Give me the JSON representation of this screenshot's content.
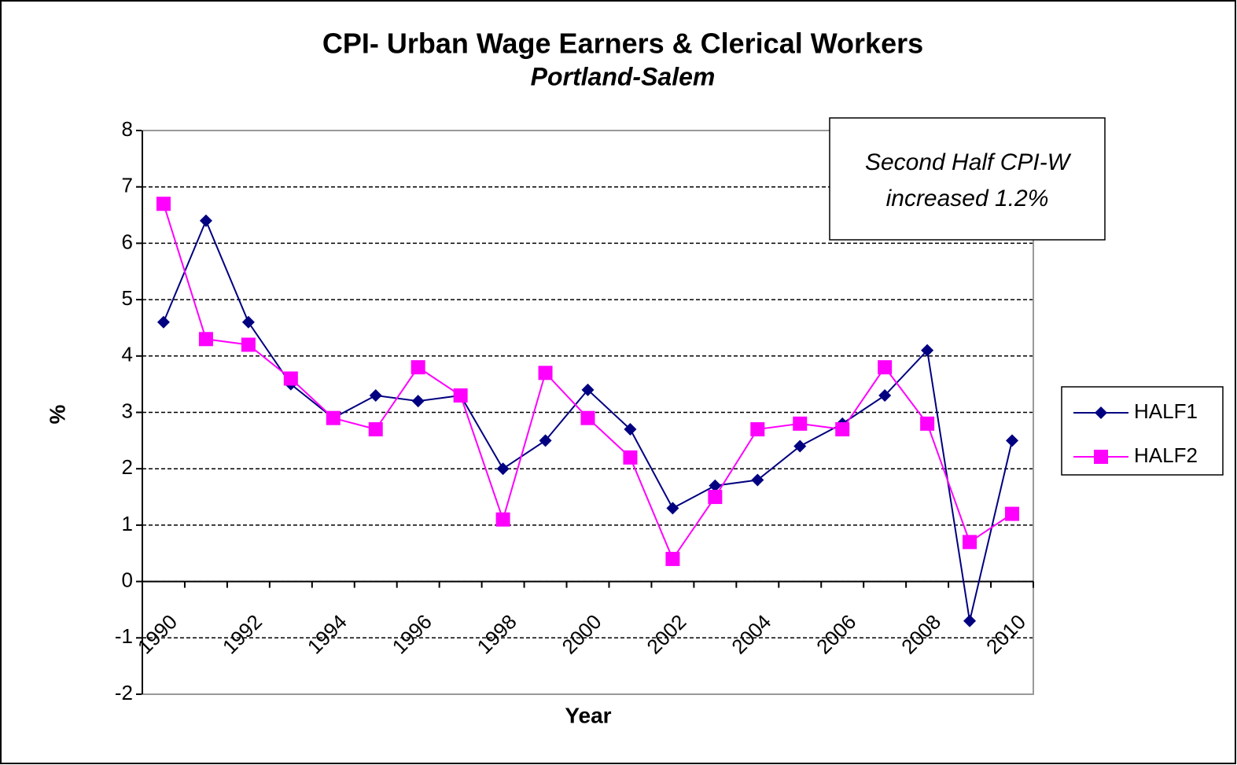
{
  "chart_data": {
    "type": "line",
    "title": "CPI- Urban Wage Earners & Clerical Workers",
    "subtitle": "Portland-Salem",
    "x_label": "Year",
    "y_label": "%",
    "annotation": [
      "Second Half CPI-W",
      "increased 1.2%"
    ],
    "categories": [
      "1990",
      null,
      "1992",
      null,
      "1994",
      null,
      "1996",
      null,
      "1998",
      null,
      "2000",
      null,
      "2002",
      null,
      "2004",
      null,
      "2006",
      null,
      "2008",
      null,
      "2010"
    ],
    "series": [
      {
        "name": "HALF1",
        "color": "#000080",
        "marker": "diamond",
        "values": [
          4.6,
          6.4,
          4.6,
          3.5,
          2.9,
          3.3,
          3.2,
          3.3,
          2.0,
          2.5,
          3.4,
          2.7,
          1.3,
          1.7,
          1.8,
          2.4,
          2.8,
          3.3,
          4.1,
          -0.7,
          2.5
        ]
      },
      {
        "name": "HALF2",
        "color": "#ff00ff",
        "marker": "square",
        "values": [
          6.7,
          4.3,
          4.2,
          3.6,
          2.9,
          2.7,
          3.8,
          3.3,
          1.1,
          3.7,
          2.9,
          2.2,
          0.4,
          1.5,
          2.7,
          2.8,
          2.7,
          3.8,
          2.8,
          0.7,
          1.2
        ]
      }
    ],
    "ylim": [
      -2,
      8
    ],
    "yticks": [
      -2,
      -1,
      0,
      1,
      2,
      3,
      4,
      5,
      6,
      7,
      8
    ],
    "grid": true,
    "legend": "right"
  }
}
